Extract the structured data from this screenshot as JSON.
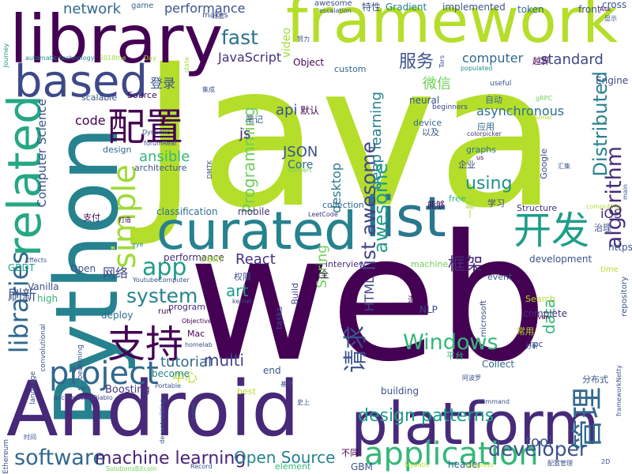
{
  "words": [
    {
      "text": "Java",
      "color": "#b5de2b"
    },
    {
      "text": "web",
      "color": "#440154"
    },
    {
      "text": "framework",
      "color": "#b5de2b"
    },
    {
      "text": "library",
      "color": "#440154"
    },
    {
      "text": "Python",
      "color": "#26828e"
    },
    {
      "text": "Android",
      "color": "#482878"
    },
    {
      "text": "platform",
      "color": "#472a7a"
    },
    {
      "text": "curated",
      "color": "#26828e"
    },
    {
      "text": "list",
      "color": "#2a788e"
    },
    {
      "text": "based",
      "color": "#3e4989"
    },
    {
      "text": "related",
      "color": "#26a784"
    },
    {
      "text": "simple",
      "color": "#a0da39"
    },
    {
      "text": "libraries",
      "color": "#31688e"
    },
    {
      "text": "project",
      "color": "#31688e"
    },
    {
      "text": "application",
      "color": "#35b779"
    },
    {
      "text": "software",
      "color": "#31688e"
    },
    {
      "text": "machine learning",
      "color": "#482475"
    },
    {
      "text": "Open Source",
      "color": "#26828e"
    },
    {
      "text": "developer",
      "color": "#3b528b"
    },
    {
      "text": "design patterns",
      "color": "#1f9e89"
    },
    {
      "text": "Windows",
      "color": "#35b779"
    },
    {
      "text": "algorithm",
      "color": "#472c7a"
    },
    {
      "text": "Distributed",
      "color": "#26828e"
    },
    {
      "text": "list awesome",
      "color": "#414487"
    },
    {
      "text": "开发",
      "color": "#1f9e89"
    },
    {
      "text": "管理",
      "color": "#31688e"
    },
    {
      "text": "支持",
      "color": "#440154"
    },
    {
      "text": "配置",
      "color": "#440154"
    },
    {
      "text": "请求",
      "color": "#3b528b"
    },
    {
      "text": "app",
      "color": "#1f9e89"
    },
    {
      "text": "system",
      "color": "#25838e"
    },
    {
      "text": "fast",
      "color": "#2c728e"
    },
    {
      "text": "tutorial",
      "color": "#31688e"
    },
    {
      "text": "multi",
      "color": "#414487"
    },
    {
      "text": "data",
      "color": "#35b779"
    },
    {
      "text": "Programming",
      "color": "#6ece58"
    },
    {
      "text": "deep learning",
      "color": "#26828e"
    },
    {
      "text": "using",
      "color": "#21918c"
    },
    {
      "text": "awesome",
      "color": "#1f9e89"
    },
    {
      "text": "JavaScript",
      "color": "#46327e"
    },
    {
      "text": "React",
      "color": "#46327e"
    },
    {
      "text": "Spring",
      "color": "#6ece58"
    },
    {
      "text": "art",
      "color": "#1f9e89"
    },
    {
      "text": "HTML",
      "color": "#414487"
    },
    {
      "text": "JSON",
      "color": "#3b528b"
    },
    {
      "text": "Core",
      "color": "#31688e"
    },
    {
      "text": "desktop",
      "color": "#2a788e"
    },
    {
      "text": "computer",
      "color": "#31688e"
    },
    {
      "text": "服务",
      "color": "#3b528b"
    },
    {
      "text": "微信",
      "color": "#6ece58"
    },
    {
      "text": "standard",
      "color": "#3e4989"
    },
    {
      "text": "asynchronous",
      "color": "#2d708e"
    },
    {
      "text": "network",
      "color": "#31688e"
    },
    {
      "text": "performance",
      "color": "#3b528b"
    },
    {
      "text": "video",
      "color": "#a0da39"
    },
    {
      "text": "code",
      "color": "#440154"
    },
    {
      "text": "ansible",
      "color": "#35b779"
    },
    {
      "text": "js",
      "color": "#482878"
    },
    {
      "text": "api",
      "color": "#3b528b"
    },
    {
      "text": "框架",
      "color": "#482878"
    },
    {
      "text": "中心",
      "color": "#b5de2b"
    },
    {
      "text": "刷新",
      "color": "#3b528b"
    },
    {
      "text": "网络",
      "color": "#414487"
    },
    {
      "text": "Computer Science",
      "color": "#3b528b"
    },
    {
      "text": "Mac",
      "color": "#440154"
    },
    {
      "text": "iOS",
      "color": "#482878"
    },
    {
      "text": "tool",
      "color": "#3b528b"
    },
    {
      "text": "building",
      "color": "#3b528b"
    },
    {
      "text": "Boosting",
      "color": "#46327e"
    },
    {
      "text": "classification",
      "color": "#2d708e"
    },
    {
      "text": "performance",
      "color": "#46327e"
    },
    {
      "text": "collection",
      "color": "#31688e"
    },
    {
      "text": "mobile",
      "color": "#46327e"
    },
    {
      "text": "interview",
      "color": "#472a7a"
    },
    {
      "text": "machine",
      "color": "#6ece58"
    },
    {
      "text": "development",
      "color": "#3b528b"
    },
    {
      "text": "Structure",
      "color": "#46327e"
    },
    {
      "text": "graphs",
      "color": "#2d708e"
    },
    {
      "text": "Google",
      "color": "#3e4989"
    },
    {
      "text": "device",
      "color": "#31688e"
    },
    {
      "text": "neural",
      "color": "#3b528b"
    },
    {
      "text": "Object",
      "color": "#440154"
    },
    {
      "text": "custom",
      "color": "#31688e"
    },
    {
      "text": "Gradient",
      "color": "#26828e"
    },
    {
      "text": "implemented",
      "color": "#3b528b"
    },
    {
      "text": "token",
      "color": "#31688e"
    },
    {
      "text": "front",
      "color": "#3b528b"
    },
    {
      "text": "cross",
      "color": "#3b528b"
    },
    {
      "text": "Engine",
      "color": "#3e4989"
    },
    {
      "text": "program",
      "color": "#482878"
    },
    {
      "text": "deploy",
      "color": "#2d708e"
    },
    {
      "text": "Collect",
      "color": "#31688e"
    },
    {
      "text": "complete",
      "color": "#46327e"
    },
    {
      "text": "Search",
      "color": "#b5de2b"
    },
    {
      "text": "event",
      "color": "#3b528b"
    },
    {
      "text": "NLP",
      "color": "#3e4989"
    },
    {
      "text": "tasks",
      "color": "#3e4989"
    },
    {
      "text": "Build",
      "color": "#3e4989"
    },
    {
      "text": "GBRT",
      "color": "#a0da39"
    },
    {
      "text": "GBDT",
      "color": "#1f9e89"
    },
    {
      "text": "Open",
      "color": "#3b528b"
    },
    {
      "text": "Vanilla",
      "color": "#3b528b"
    },
    {
      "text": "high",
      "color": "#35b779"
    },
    {
      "text": "end",
      "color": "#3b528b"
    },
    {
      "text": "best",
      "color": "#b5de2b"
    },
    {
      "text": "become",
      "color": "#26828e"
    },
    {
      "text": "header",
      "color": "#31688e"
    },
    {
      "text": "element",
      "color": "#35b779"
    },
    {
      "text": "GBM",
      "color": "#3b528b"
    },
    {
      "text": "不同",
      "color": "#440154"
    },
    {
      "text": "汇总",
      "color": "#440154"
    },
    {
      "text": "平台",
      "color": "#35b779"
    },
    {
      "text": "分布式",
      "color": "#3b528b"
    },
    {
      "text": "常用",
      "color": "#b5de2b"
    },
    {
      "text": "rpc",
      "color": "#3e4989"
    },
    {
      "text": "应用",
      "color": "#31688e"
    },
    {
      "text": "企业",
      "color": "#3e4989"
    },
    {
      "text": "自动",
      "color": "#31688e"
    },
    {
      "text": "以及",
      "color": "#3b528b"
    },
    {
      "text": "学习",
      "color": "#3e4989"
    },
    {
      "text": "能够",
      "color": "#440154"
    },
    {
      "text": "一款",
      "color": "#a0da39"
    },
    {
      "text": "治理",
      "color": "#3e4989"
    },
    {
      "text": "最全",
      "color": "#440154"
    },
    {
      "text": "权限",
      "color": "#3b528b"
    },
    {
      "text": "登录",
      "color": "#3b528b"
    },
    {
      "text": "默认",
      "color": "#440154"
    },
    {
      "text": "笔记",
      "color": "#3b528b"
    },
    {
      "text": "越界",
      "color": "#440154"
    },
    {
      "text": "特性",
      "color": "#3b528b"
    },
    {
      "text": "支付",
      "color": "#440154"
    },
    {
      "text": "free",
      "color": "#35b779"
    },
    {
      "text": "beginners",
      "color": "#3e4989"
    },
    {
      "text": "useful",
      "color": "#3b528b"
    },
    {
      "text": "microsoft",
      "color": "#3e4989"
    },
    {
      "text": "repository",
      "color": "#3b528b"
    },
    {
      "text": "time",
      "color": "#b5de2b"
    },
    {
      "text": "https",
      "color": "#3b528b"
    },
    {
      "text": "game",
      "color": "#31688e"
    },
    {
      "text": "makes",
      "color": "#3e4989"
    },
    {
      "text": "awesome",
      "color": "#3b528b"
    },
    {
      "text": "escalation",
      "color": "#3b528b"
    },
    {
      "text": "Journey",
      "color": "#21918c"
    },
    {
      "text": "automatic",
      "color": "#21918c"
    },
    {
      "text": "technology",
      "color": "#26828e"
    },
    {
      "text": "2018the",
      "color": "#a0da39"
    },
    {
      "text": "Day",
      "color": "#b5de2b"
    },
    {
      "text": "state",
      "color": "#a0da39"
    },
    {
      "text": "scalable",
      "color": "#3b528b"
    },
    {
      "text": "Source",
      "color": "#440154"
    },
    {
      "text": "design",
      "color": "#31688e"
    },
    {
      "text": "forumReal",
      "color": "#3b528b"
    },
    {
      "text": "Dynamic",
      "color": "#3e4989"
    },
    {
      "text": "architecture",
      "color": "#3b528b"
    },
    {
      "text": "convert",
      "color": "#6ece58"
    },
    {
      "text": "DMTK",
      "color": "#3e4989"
    },
    {
      "text": "colorpicker",
      "color": "#46327e"
    },
    {
      "text": "us",
      "color": "#440154"
    },
    {
      "text": "Tars",
      "color": "#3b528b"
    },
    {
      "text": "populated",
      "color": "#21918c"
    },
    {
      "text": "gRPC",
      "color": "#6ece58"
    },
    {
      "text": "personal",
      "color": "#b5de2b"
    },
    {
      "text": "computing",
      "color": "#b5de2b"
    },
    {
      "text": "Ask",
      "color": "#440154"
    },
    {
      "text": "LeetCode",
      "color": "#46327e"
    },
    {
      "text": "打造",
      "color": "#440154"
    },
    {
      "text": "YoutubeComputer",
      "color": "#3b528b"
    },
    {
      "text": "kernel",
      "color": "#3e4989"
    },
    {
      "text": "eye",
      "color": "#21918c"
    },
    {
      "text": "Effects",
      "color": "#3b528b"
    },
    {
      "text": "Objective",
      "color": "#440154"
    },
    {
      "text": "homelab",
      "color": "#3b528b"
    },
    {
      "text": "Portable",
      "color": "#3b528b"
    },
    {
      "text": "convolutional",
      "color": "#3b528b"
    },
    {
      "text": "language",
      "color": "#3b528b"
    },
    {
      "text": "becoming",
      "color": "#3b528b"
    },
    {
      "text": "Ethereum",
      "color": "#3b528b"
    },
    {
      "text": "vars",
      "color": "#3b528b"
    },
    {
      "text": "accelerationDiablo",
      "color": "#3e4989"
    },
    {
      "text": "decentralizing",
      "color": "#3b528b"
    },
    {
      "text": "panel",
      "color": "#3b528b"
    },
    {
      "text": "SolutionsBitcoin",
      "color": "#6ece58"
    },
    {
      "text": "Record",
      "color": "#3b528b"
    },
    {
      "text": "Mybatis",
      "color": "#b5de2b"
    },
    {
      "text": "progress",
      "color": "#b5de2b"
    },
    {
      "text": "配置管理",
      "color": "#3b528b"
    },
    {
      "text": "command",
      "color": "#3b528b"
    },
    {
      "text": "阿波罗",
      "color": "#3b528b"
    },
    {
      "text": "frameworkNetty",
      "color": "#3b528b"
    },
    {
      "text": "main",
      "color": "#3b528b"
    },
    {
      "text": "driven",
      "color": "#440154"
    },
    {
      "text": "分析",
      "color": "#3b528b"
    },
    {
      "text": "run",
      "color": "#440154"
    },
    {
      "text": "史上",
      "color": "#3b528b"
    },
    {
      "text": "基于",
      "color": "#3b528b"
    },
    {
      "text": "时间",
      "color": "#3b528b"
    },
    {
      "text": "日志",
      "color": "#3b528b"
    },
    {
      "text": "努力",
      "color": "#3b528b"
    },
    {
      "text": "集成",
      "color": "#3b528b"
    },
    {
      "text": "显示",
      "color": "#3b528b"
    },
    {
      "text": "汇集",
      "color": "#3b528b"
    },
    {
      "text": "2D",
      "color": "#3b528b"
    }
  ]
}
